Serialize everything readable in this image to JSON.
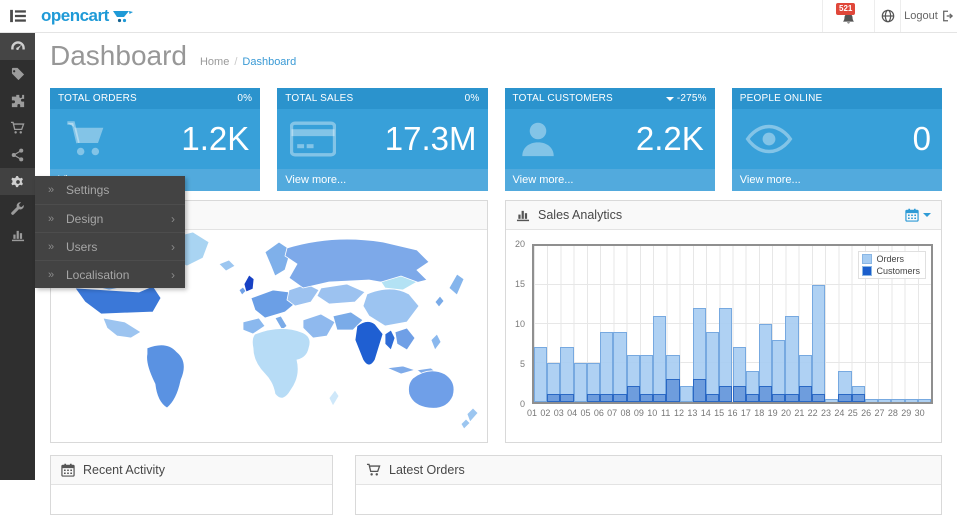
{
  "header": {
    "logo": "opencart",
    "notification_count": "521",
    "logout": "Logout"
  },
  "page": {
    "title": "Dashboard",
    "breadcrumb_home": "Home",
    "breadcrumb_sep": "/",
    "breadcrumb_current": "Dashboard"
  },
  "sidebar_icons": [
    "dashboard",
    "catalog-tag",
    "extensions-puzzle",
    "sales-cart",
    "marketing-share",
    "settings-gear",
    "system-wrench",
    "reports-chart"
  ],
  "menu": {
    "items": [
      {
        "label": "Settings",
        "has_submenu": false
      },
      {
        "label": "Design",
        "has_submenu": true
      },
      {
        "label": "Users",
        "has_submenu": true
      },
      {
        "label": "Localisation",
        "has_submenu": true
      }
    ]
  },
  "tiles": [
    {
      "title": "TOTAL ORDERS",
      "percent": "0%",
      "value": "1.2K",
      "footer": "View more...",
      "icon": "shopping-cart"
    },
    {
      "title": "TOTAL SALES",
      "percent": "0%",
      "value": "17.3M",
      "footer": "View more...",
      "icon": "credit-card"
    },
    {
      "title": "TOTAL CUSTOMERS",
      "percent": "-275%",
      "trend": "down",
      "value": "2.2K",
      "footer": "View more...",
      "icon": "user"
    },
    {
      "title": "PEOPLE ONLINE",
      "percent": "",
      "value": "0",
      "footer": "View more...",
      "icon": "eye"
    }
  ],
  "panels": {
    "map": {
      "title": "",
      "type": "world-map-choropleth"
    },
    "sales": {
      "title": "Sales Analytics",
      "icon": "bar-chart",
      "action_icon": "calendar-dropdown"
    },
    "recent_activity": {
      "title": "Recent Activity",
      "icon": "calendar"
    },
    "latest_orders": {
      "title": "Latest Orders",
      "icon": "shopping-cart"
    }
  },
  "colors": {
    "tile_header_blue": "#2b93cd",
    "tile_body_blue": "#38a0d9",
    "tile_footer_blue": "#52aadd",
    "badge_red": "#e0473a",
    "link_blue": "#3a9ad5",
    "logo_blue": "#1f9ad7",
    "map_dark_country": "#1f5fd2",
    "map_light_country": "#b7dcf6"
  },
  "chart_data": {
    "type": "bar",
    "title": "Sales Analytics",
    "x": [
      "01",
      "02",
      "03",
      "04",
      "05",
      "06",
      "07",
      "08",
      "09",
      "10",
      "11",
      "12",
      "13",
      "14",
      "15",
      "16",
      "17",
      "18",
      "19",
      "20",
      "21",
      "22",
      "23",
      "24",
      "25",
      "26",
      "27",
      "28",
      "29",
      "30"
    ],
    "series": [
      {
        "name": "Orders",
        "color": "#a6ccf2",
        "border": "#77a9e0",
        "values": [
          7,
          5,
          7,
          5,
          5,
          9,
          9,
          6,
          6,
          11,
          6,
          2,
          12,
          9,
          12,
          7,
          4,
          10,
          8,
          11,
          6,
          15,
          0,
          4,
          2,
          0,
          0,
          0,
          0,
          0
        ]
      },
      {
        "name": "Customers",
        "color": "#1b5ecc",
        "border": "#2a68c4",
        "values": [
          0,
          1,
          1,
          0,
          1,
          1,
          1,
          2,
          1,
          1,
          3,
          0,
          3,
          1,
          2,
          2,
          1,
          2,
          1,
          1,
          2,
          1,
          0,
          1,
          1,
          0,
          0,
          0,
          0,
          0
        ]
      }
    ],
    "xlabel": "",
    "ylabel": "",
    "ylim": [
      0,
      20
    ],
    "yticks": [
      0,
      5,
      10,
      15,
      20
    ],
    "grid": true,
    "legend_position": "top-right"
  }
}
